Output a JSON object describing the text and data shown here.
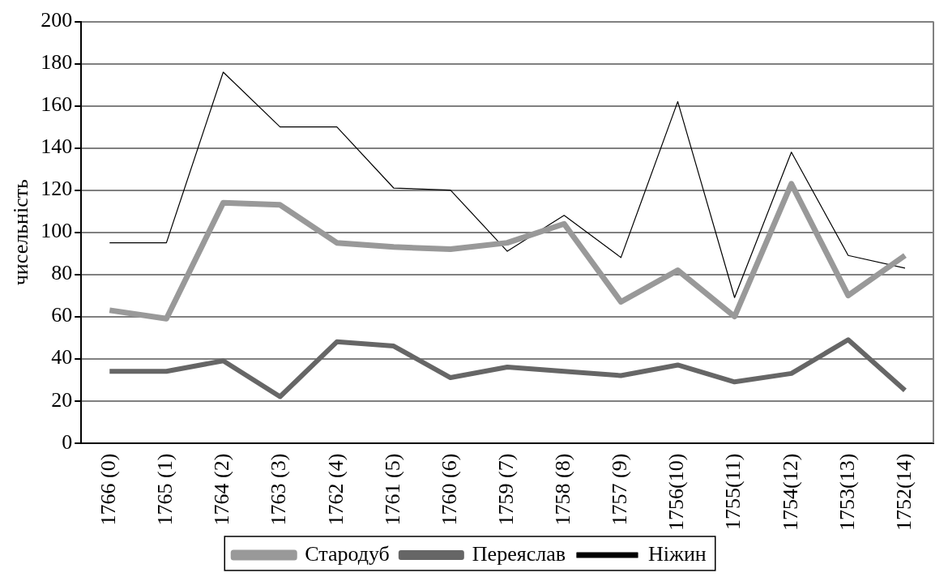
{
  "chart_data": {
    "type": "line",
    "ylabel": "чисельність",
    "categories": [
      "1766 (0)",
      "1765 (1)",
      "1764 (2)",
      "1763 (3)",
      "1762 (4)",
      "1761 (5)",
      "1760 (6)",
      "1759 (7)",
      "1758 (8)",
      "1757 (9)",
      "1756(10)",
      "1755(11)",
      "1754(12)",
      "1753(13)",
      "1752(14)"
    ],
    "series": [
      {
        "name": "Стародуб",
        "color": "#999999",
        "values": [
          63,
          59,
          114,
          113,
          95,
          93,
          92,
          95,
          104,
          67,
          82,
          60,
          123,
          70,
          89
        ]
      },
      {
        "name": "Переяслав",
        "color": "#666666",
        "values": [
          34,
          34,
          39,
          22,
          48,
          46,
          31,
          36,
          34,
          32,
          37,
          29,
          33,
          49,
          25
        ]
      },
      {
        "name": "Ніжин",
        "color": "#000000",
        "values": [
          95,
          95,
          176,
          150,
          150,
          121,
          120,
          91,
          108,
          88,
          162,
          69,
          138,
          89,
          83
        ]
      }
    ],
    "ylim": [
      0,
      200
    ],
    "yticks": [
      0,
      20,
      40,
      60,
      80,
      100,
      120,
      140,
      160,
      180,
      200
    ],
    "grid": "y",
    "legend": "bottom",
    "marker": "none",
    "line_style": "solid"
  }
}
